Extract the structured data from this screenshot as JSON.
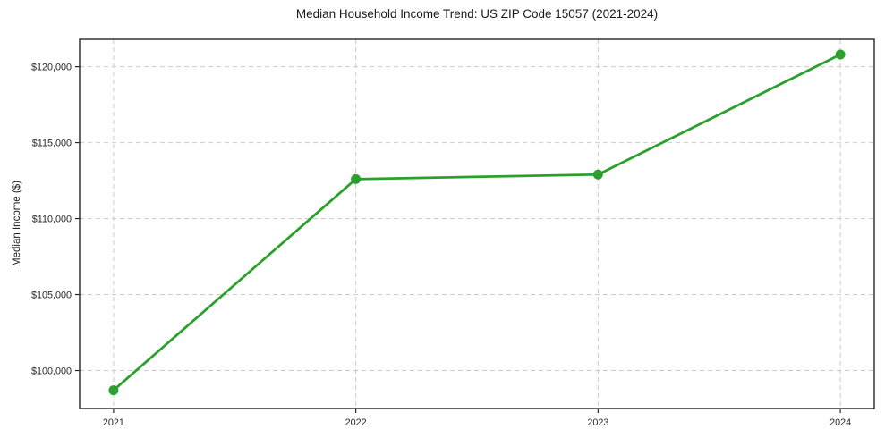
{
  "chart_data": {
    "type": "line",
    "title": "Median Household Income Trend: US ZIP Code 15057 (2021-2024)",
    "ylabel": "Median Income ($)",
    "xlabel": "",
    "x": [
      2021,
      2022,
      2023,
      2024
    ],
    "xtick_labels": [
      "2021",
      "2022",
      "2023",
      "2024"
    ],
    "series": [
      {
        "name": "Median household income",
        "values": [
          98700,
          112600,
          112900,
          120800
        ]
      }
    ],
    "ytick_values": [
      100000,
      105000,
      110000,
      115000,
      120000
    ],
    "ytick_labels": [
      "$100,000",
      "$105,000",
      "$110,000",
      "$115,000",
      "$120,000"
    ],
    "xlim": [
      2020.86,
      2024.14
    ],
    "ylim": [
      97500,
      121800
    ],
    "grid": true,
    "legend": "none",
    "line_color": "#2ca02c",
    "marker": "circle",
    "marker_radius": 5.5
  }
}
